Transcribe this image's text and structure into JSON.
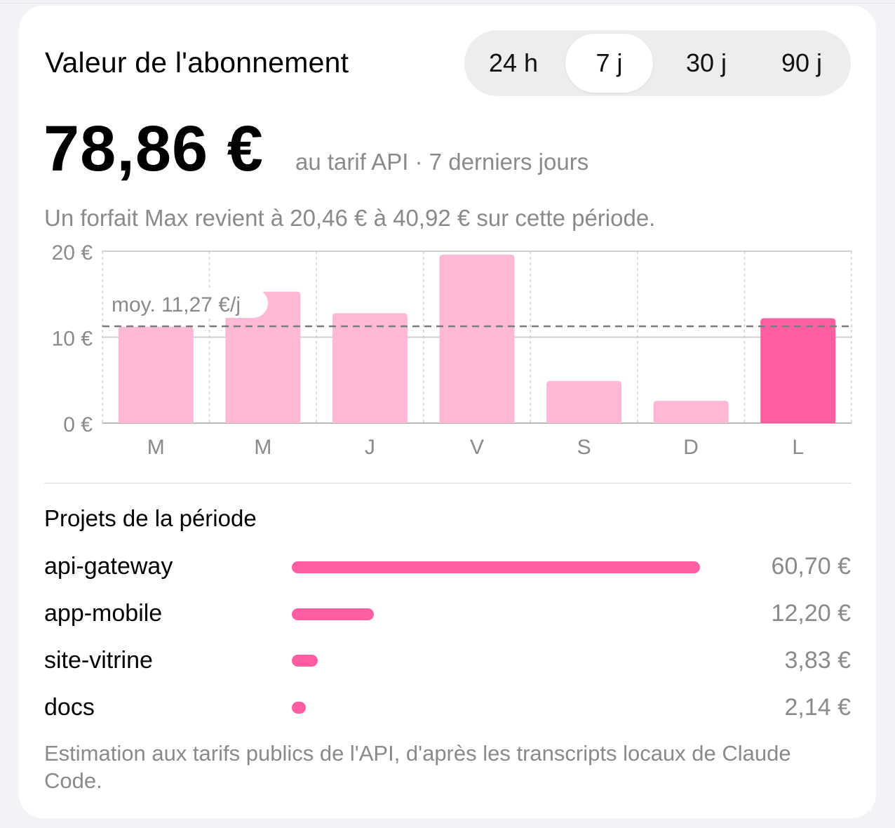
{
  "colors": {
    "accent": "#ff5fa2",
    "accent_light": "#ffb8d6",
    "grid": "#c8c8c8",
    "muted_text": "#8a8a8e"
  },
  "header": {
    "title": "Valeur de l'abonnement"
  },
  "period_selector": {
    "options": [
      "24 h",
      "7 j",
      "30 j",
      "90 j"
    ],
    "selected": "7 j"
  },
  "summary": {
    "amount": "78,86 €",
    "subtitle": "au tarif API · 7 derniers jours",
    "note": "Un forfait Max revient à 20,46 € à 40,92 € sur cette période."
  },
  "chart_data": {
    "type": "bar",
    "categories": [
      "M",
      "M",
      "J",
      "V",
      "S",
      "D",
      "L"
    ],
    "values": [
      11.2,
      15.3,
      12.8,
      19.6,
      4.9,
      2.6,
      12.2
    ],
    "highlighted_index": 6,
    "ylim": [
      0,
      20
    ],
    "yticks": [
      0,
      10,
      20
    ],
    "ytick_labels": [
      "0 €",
      "10 €",
      "20 €"
    ],
    "average": 11.27,
    "average_label": "moy. 11,27 €/j",
    "grid": true
  },
  "projects": {
    "title": "Projets de la période",
    "items": [
      {
        "name": "api-gateway",
        "value": "60,70 €",
        "share": 1.0
      },
      {
        "name": "app-mobile",
        "value": "12,20 €",
        "share": 0.201
      },
      {
        "name": "site-vitrine",
        "value": "3,83 €",
        "share": 0.063
      },
      {
        "name": "docs",
        "value": "2,14 €",
        "share": 0.035
      }
    ]
  },
  "footer": {
    "text": "Estimation aux tarifs publics de l'API, d'après les transcripts locaux de Claude Code."
  }
}
